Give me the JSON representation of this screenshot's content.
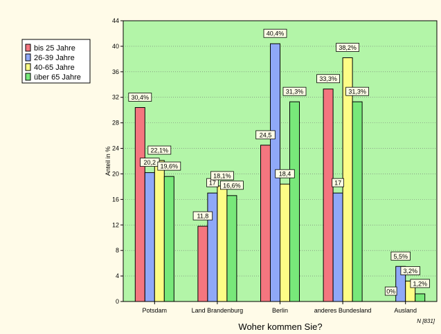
{
  "chart_data": {
    "type": "bar",
    "title": "",
    "xlabel": "Woher kommen Sie?",
    "ylabel": "Anteil in %",
    "note": "N [831]",
    "ylim": [
      0,
      44
    ],
    "yticks": [
      0,
      4,
      8,
      12,
      16,
      20,
      24,
      28,
      32,
      36,
      40,
      44
    ],
    "grid": true,
    "legend": "top-left",
    "categories": [
      "Potsdam",
      "Land Brandenburg",
      "Berlin",
      "anderes Bundesland",
      "Ausland"
    ],
    "series": [
      {
        "name": "bis 25 Jahre",
        "color": "#f4767f",
        "values": [
          30.4,
          11.8,
          24.5,
          33.3,
          0
        ],
        "labels": [
          "30,4%",
          "11,8",
          "24,5",
          "33,3%",
          "0%"
        ]
      },
      {
        "name": "26-39 Jahre",
        "color": "#8fa8f7",
        "values": [
          20.2,
          17.0,
          40.4,
          17.0,
          5.5
        ],
        "labels": [
          "20,2",
          "17",
          "40,4%",
          "17",
          "5,5%"
        ]
      },
      {
        "name": "40-65 Jahre",
        "color": "#fdfd86",
        "values": [
          22.1,
          18.1,
          18.4,
          38.2,
          3.2
        ],
        "labels": [
          "22,1%",
          "18,1%",
          "18,4",
          "38,2%",
          "3,2%"
        ]
      },
      {
        "name": "über 65 Jahre",
        "color": "#78e87a",
        "values": [
          19.6,
          16.6,
          31.3,
          31.3,
          1.2
        ],
        "labels": [
          "19,6%",
          "16,6%",
          "31,3%",
          "31,3%",
          "1,2%"
        ]
      }
    ]
  }
}
